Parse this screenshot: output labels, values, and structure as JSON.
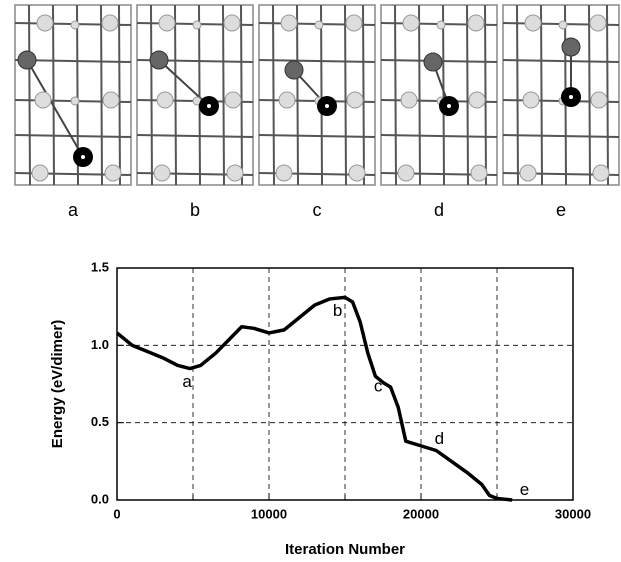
{
  "panels": [
    "a",
    "b",
    "c",
    "d",
    "e"
  ],
  "chart_data": {
    "type": "line",
    "x_label": "Iteration Number",
    "y_label": "Energy (eV/dimer)",
    "x": [
      0,
      1000,
      2000,
      3000,
      4000,
      4800,
      5500,
      6500,
      7500,
      8200,
      9000,
      10000,
      11000,
      12000,
      13000,
      14000,
      15000,
      15500,
      16000,
      16500,
      17000,
      17500,
      18000,
      18500,
      19000,
      20000,
      21000,
      22000,
      23000,
      24000,
      24500,
      25000,
      26000
    ],
    "series": [
      {
        "color": "#000000",
        "values": [
          1.08,
          1.0,
          0.96,
          0.92,
          0.87,
          0.85,
          0.87,
          0.95,
          1.05,
          1.12,
          1.11,
          1.08,
          1.1,
          1.18,
          1.26,
          1.3,
          1.31,
          1.28,
          1.15,
          0.95,
          0.8,
          0.76,
          0.73,
          0.6,
          0.38,
          0.35,
          0.32,
          0.25,
          0.18,
          0.1,
          0.03,
          0.01,
          0.0
        ]
      }
    ],
    "annotations": [
      "a",
      "b",
      "c",
      "d",
      "e"
    ],
    "xlim": [
      0,
      30000
    ],
    "ylim": [
      0,
      1.5
    ],
    "xticks": [
      0,
      10000,
      20000,
      30000
    ],
    "yticks": [
      {
        "value": 0,
        "label": "0.0"
      },
      {
        "value": 0.5,
        "label": "0.5"
      },
      {
        "value": 1,
        "label": "1.0"
      },
      {
        "value": 1.5,
        "label": "1.5"
      }
    ],
    "x_grid": [
      5000,
      10000,
      15000,
      20000,
      25000
    ],
    "y_grid": [
      0.5,
      1
    ]
  }
}
